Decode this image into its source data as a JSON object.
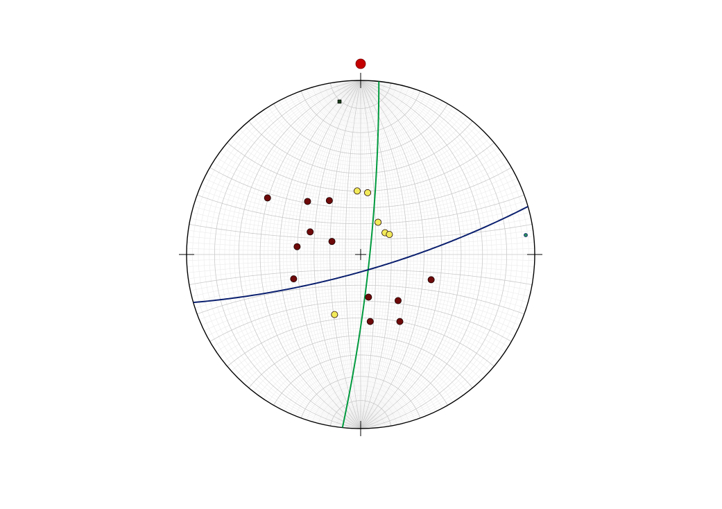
{
  "stereonet": {
    "projection": "equal-angle",
    "grid_interval_deg": 10,
    "fine_grid_interval_deg": 2,
    "colors": {
      "background": "#ffffff",
      "primitive": "#000000",
      "major_grid": "#c9c9c9",
      "minor_grid": "#ebebeb",
      "green_plane": "#009a3e",
      "blue_plane": "#0a1f6e",
      "dark_poles": "#6e0a0a",
      "yellow_poles": "#f2ea5a",
      "north_marker": "#c40000"
    },
    "north_marker": true,
    "green_plane_pole": true,
    "blue_plane_pole": true
  },
  "chart_data": {
    "type": "stereonet",
    "net_markers": [
      "north",
      "east",
      "south",
      "west",
      "center"
    ],
    "planes": [
      {
        "color": "green",
        "strike_deg": 6,
        "dip_deg": 84
      },
      {
        "color": "blue",
        "strike_deg": 74,
        "dip_deg": 79
      }
    ],
    "point_sets": [
      {
        "color": "dark-red",
        "points_xy": [
          [
            -0.535,
            0.325
          ],
          [
            -0.305,
            0.305
          ],
          [
            -0.18,
            0.31
          ],
          [
            -0.29,
            0.13
          ],
          [
            -0.365,
            0.045
          ],
          [
            -0.165,
            0.075
          ],
          [
            -0.385,
            -0.14
          ],
          [
            0.405,
            -0.145
          ],
          [
            0.045,
            -0.245
          ],
          [
            0.215,
            -0.265
          ],
          [
            0.055,
            -0.385
          ],
          [
            0.225,
            -0.385
          ]
        ]
      },
      {
        "color": "yellow",
        "points_xy": [
          [
            -0.02,
            0.365
          ],
          [
            0.04,
            0.355
          ],
          [
            0.1,
            0.185
          ],
          [
            0.14,
            0.125
          ],
          [
            0.165,
            0.115
          ],
          [
            -0.15,
            -0.345
          ]
        ]
      }
    ]
  }
}
